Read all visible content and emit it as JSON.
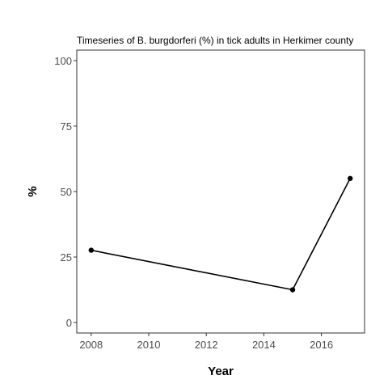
{
  "chart_data": {
    "type": "line",
    "title": "Timeseries of B. burgdorferi (%) in tick adults in Herkimer county",
    "xlabel": "Year",
    "ylabel": "%",
    "x": [
      2008,
      2015,
      2017
    ],
    "series": [
      {
        "values": [
          27.6,
          12.5,
          55.0
        ]
      }
    ],
    "xlim": [
      2007.5,
      2017.5
    ],
    "ylim": [
      -4,
      104
    ],
    "xticks": [
      2008,
      2010,
      2012,
      2014,
      2016
    ],
    "xtick_labels": [
      "2008",
      "2010",
      "2012",
      "2014",
      "2016"
    ],
    "yticks": [
      0,
      25,
      50,
      75,
      100
    ],
    "ytick_labels": [
      "0",
      "25",
      "50",
      "75",
      "100"
    ],
    "grid": false,
    "legend": "none",
    "line_color": "#000000",
    "panel_border_color": "#333333"
  }
}
